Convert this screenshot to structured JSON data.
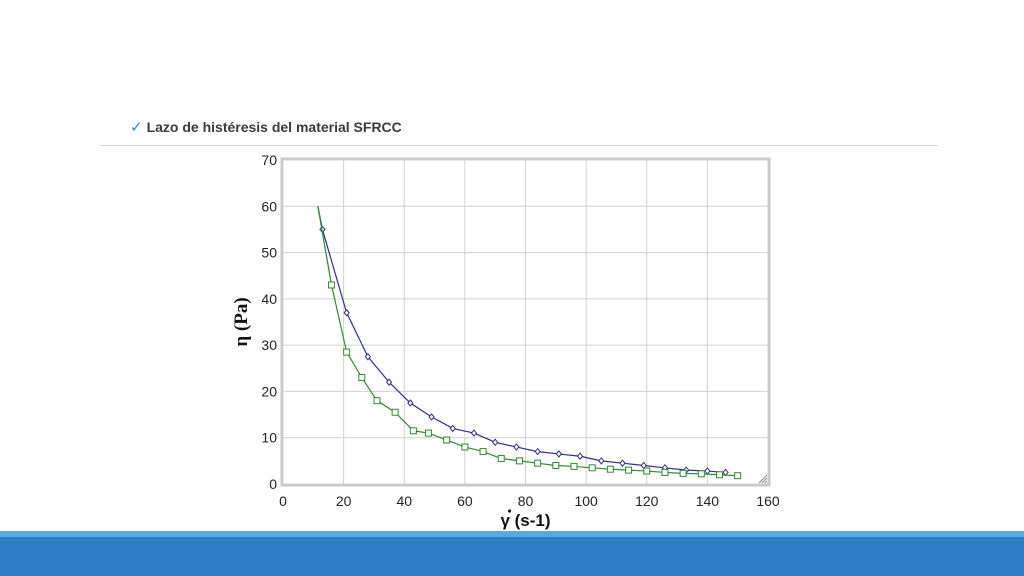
{
  "slide": {
    "check_icon": "✓",
    "title": "Lazo de histéresis del material SFRCC"
  },
  "colors": {
    "accent": "#2a7fc5",
    "accent_light": "#5aa8df",
    "series_up": "#2e2e8f",
    "series_down": "#2e8b2e"
  },
  "chart_data": {
    "type": "line",
    "ylabel": "η (Pa)",
    "xlabel": "γ (s-1)",
    "xlim": [
      0,
      160
    ],
    "ylim": [
      0,
      70
    ],
    "xticks": [
      0,
      20,
      40,
      60,
      80,
      100,
      120,
      140,
      160
    ],
    "yticks": [
      0,
      10,
      20,
      30,
      40,
      50,
      60,
      70
    ],
    "grid": true,
    "series": [
      {
        "marker": "diamond",
        "color": "#2e2e8f",
        "x": [
          13,
          21,
          28,
          35,
          42,
          49,
          56,
          63,
          70,
          77,
          84,
          91,
          98,
          105,
          112,
          119,
          126,
          133,
          140,
          146
        ],
        "y": [
          55,
          37,
          27.5,
          22,
          17.5,
          14.5,
          12,
          11,
          9,
          8,
          7,
          6.5,
          6,
          5,
          4.5,
          4,
          3.5,
          3,
          2.8,
          2.5
        ]
      },
      {
        "marker": "square",
        "color": "#2e8b2e",
        "x": [
          16,
          21,
          26,
          31,
          37,
          43,
          48,
          54,
          60,
          66,
          72,
          78,
          84,
          90,
          96,
          102,
          108,
          114,
          120,
          126,
          132,
          138,
          144,
          150
        ],
        "y": [
          43,
          28.5,
          23,
          18,
          15.5,
          11.5,
          11,
          9.5,
          8,
          7,
          5.5,
          5,
          4.5,
          4,
          3.8,
          3.5,
          3.2,
          3,
          2.8,
          2.5,
          2.3,
          2.2,
          2,
          1.8
        ]
      }
    ],
    "curve_start": [
      {
        "x": 11.5,
        "y": 60
      },
      {
        "x": 11.5,
        "y": 60
      }
    ]
  }
}
